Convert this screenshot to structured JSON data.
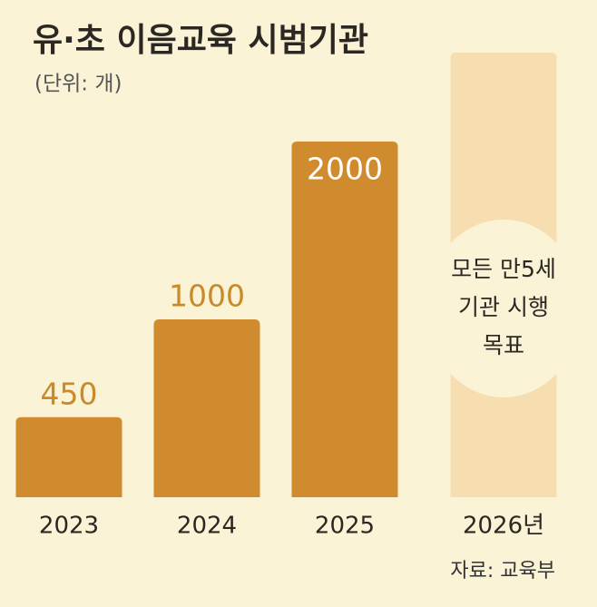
{
  "chart_data": {
    "type": "bar",
    "title": "유·초 이음교육 시범기관",
    "subtitle": "(단위: 개)",
    "categories": [
      "2023",
      "2024",
      "2025",
      "2026년"
    ],
    "values": [
      450,
      1000,
      2000,
      null
    ],
    "color": "#d18b2f",
    "ylim": [
      0,
      2500
    ],
    "annotation": [
      "모든 만5세",
      "기관 시행",
      "목표"
    ],
    "source": "자료: 교육부"
  }
}
